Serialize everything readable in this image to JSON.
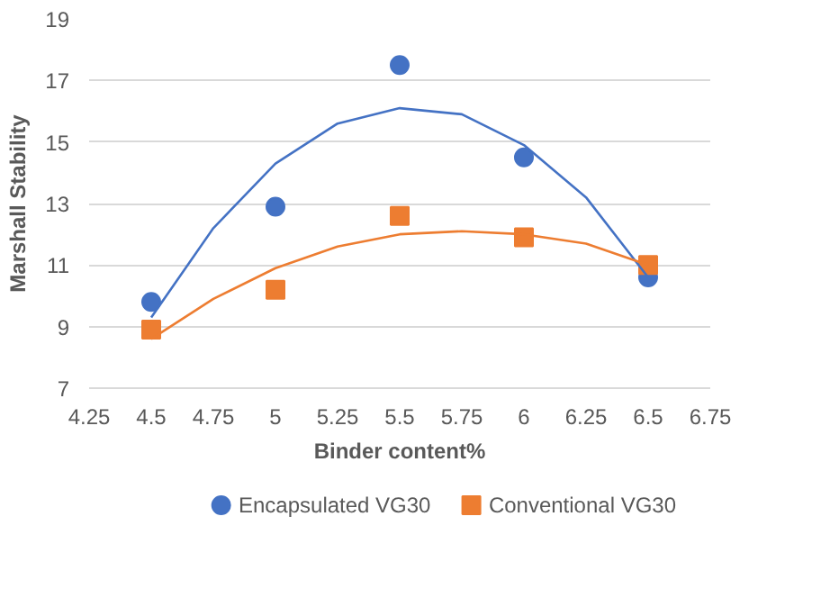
{
  "chart_data": {
    "type": "scatter",
    "xlabel": "Binder content%",
    "ylabel": "Marshall Stability",
    "xlim": [
      4.25,
      6.75
    ],
    "xticks": [
      4.25,
      4.5,
      4.75,
      5,
      5.25,
      5.5,
      5.75,
      6,
      6.25,
      6.5,
      6.75
    ],
    "ylim": [
      7,
      19
    ],
    "yticks": [
      7,
      9,
      11,
      13,
      15,
      17,
      19
    ],
    "grid": "y",
    "legend": "bottom",
    "series": [
      {
        "name": "Encapsulated VG30",
        "color": "#4472c4",
        "marker": "circle",
        "x": [
          4.5,
          5,
          5.5,
          6,
          6.5
        ],
        "values": [
          9.8,
          12.9,
          17.5,
          14.5,
          10.6
        ]
      },
      {
        "name": "Conventional VG30",
        "color": "#ed7d31",
        "marker": "square",
        "x": [
          4.5,
          5,
          5.5,
          6,
          6.5
        ],
        "values": [
          8.9,
          10.2,
          12.6,
          11.9,
          11.0
        ]
      },
      {
        "type": "line",
        "color": "#4472c4",
        "marker": "none",
        "x": [
          4.5,
          4.75,
          5,
          5.25,
          5.5,
          5.75,
          6,
          6.25,
          6.5
        ],
        "values": [
          9.3,
          12.2,
          14.3,
          15.6,
          16.1,
          15.9,
          14.9,
          13.2,
          10.6
        ]
      },
      {
        "type": "line",
        "color": "#ed7d31",
        "marker": "none",
        "x": [
          4.5,
          4.75,
          5,
          5.25,
          5.5,
          5.75,
          6,
          6.25,
          6.5
        ],
        "values": [
          8.6,
          9.9,
          10.9,
          11.6,
          12.0,
          12.1,
          12.0,
          11.7,
          11.0
        ]
      }
    ]
  }
}
